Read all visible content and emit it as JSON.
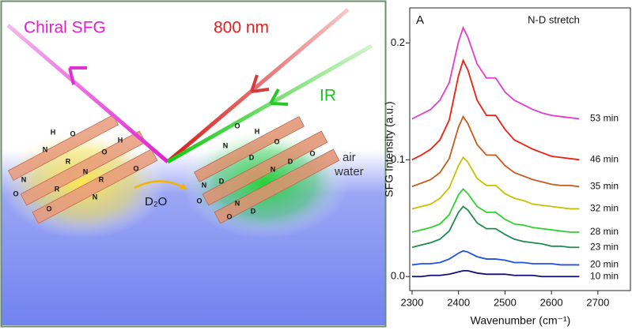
{
  "diagram": {
    "beam_sfg": "Chiral SFG",
    "beam_visible": "800 nm",
    "beam_ir": "IR",
    "air": "air",
    "water": "water",
    "exchange": "D₂O",
    "left_molecule_atoms": [
      "H",
      "O",
      "N",
      "R",
      "O",
      "H",
      "N",
      "R",
      "O",
      "N",
      "R",
      "O",
      "N",
      "O"
    ],
    "right_molecule_atoms": [
      "O",
      "H",
      "N",
      "D",
      "O",
      "N",
      "D",
      "O",
      "N",
      "D",
      "O",
      "N",
      "D",
      "O"
    ]
  },
  "chart_data": {
    "type": "line",
    "annotation": "A",
    "subtitle": "N-D stretch",
    "x_label": "Wavenumber (cm⁻¹)",
    "y_label": "SFG Intensity (a.u.)",
    "x": [
      2300,
      2320,
      2340,
      2360,
      2380,
      2400,
      2410,
      2420,
      2440,
      2460,
      2480,
      2500,
      2520,
      2540,
      2560,
      2580,
      2600,
      2620,
      2640,
      2660
    ],
    "xlim": [
      2295,
      2770
    ],
    "xticks": [
      2300,
      2400,
      2500,
      2600,
      2700
    ],
    "ylim": [
      -0.012,
      0.23
    ],
    "yticks": [
      {
        "value": 0,
        "label": "0.0"
      },
      0.1,
      0.2
    ],
    "series": [
      {
        "name": "53 min",
        "color": "#e43cc8",
        "values": [
          0.135,
          0.139,
          0.143,
          0.151,
          0.166,
          0.201,
          0.213,
          0.205,
          0.182,
          0.17,
          0.17,
          0.158,
          0.151,
          0.147,
          0.143,
          0.14,
          0.138,
          0.137,
          0.136,
          0.135
        ]
      },
      {
        "name": "46 min",
        "color": "#f01e10",
        "values": [
          0.1,
          0.104,
          0.109,
          0.117,
          0.134,
          0.172,
          0.185,
          0.177,
          0.151,
          0.138,
          0.138,
          0.126,
          0.117,
          0.113,
          0.109,
          0.106,
          0.103,
          0.102,
          0.101,
          0.1
        ]
      },
      {
        "name": "35 min",
        "color": "#c85a20",
        "values": [
          0.077,
          0.08,
          0.083,
          0.089,
          0.101,
          0.128,
          0.137,
          0.131,
          0.113,
          0.104,
          0.104,
          0.095,
          0.089,
          0.086,
          0.083,
          0.081,
          0.079,
          0.078,
          0.078,
          0.077
        ]
      },
      {
        "name": "32 min",
        "color": "#c8c000",
        "values": [
          0.058,
          0.06,
          0.062,
          0.067,
          0.076,
          0.095,
          0.102,
          0.098,
          0.084,
          0.078,
          0.078,
          0.071,
          0.067,
          0.065,
          0.062,
          0.061,
          0.06,
          0.059,
          0.058,
          0.058
        ]
      },
      {
        "name": "28 min",
        "color": "#30d030",
        "values": [
          0.038,
          0.04,
          0.042,
          0.045,
          0.053,
          0.07,
          0.075,
          0.071,
          0.06,
          0.055,
          0.055,
          0.049,
          0.045,
          0.044,
          0.042,
          0.041,
          0.04,
          0.039,
          0.038,
          0.038
        ]
      },
      {
        "name": "23 min",
        "color": "#208a50",
        "values": [
          0.025,
          0.027,
          0.029,
          0.032,
          0.039,
          0.055,
          0.06,
          0.057,
          0.046,
          0.041,
          0.041,
          0.036,
          0.032,
          0.03,
          0.029,
          0.028,
          0.026,
          0.026,
          0.025,
          0.025
        ]
      },
      {
        "name": "20 min",
        "color": "#2050e0",
        "values": [
          0.01,
          0.011,
          0.011,
          0.012,
          0.015,
          0.02,
          0.022,
          0.021,
          0.017,
          0.015,
          0.015,
          0.014,
          0.012,
          0.012,
          0.011,
          0.011,
          0.011,
          0.01,
          0.01,
          0.01
        ]
      },
      {
        "name": "10 min",
        "color": "#10107a",
        "values": [
          0,
          0,
          0.001,
          0.001,
          0.002,
          0.004,
          0.005,
          0.005,
          0.003,
          0.002,
          0.002,
          0.002,
          0.001,
          0.001,
          0.001,
          0,
          0,
          0,
          0,
          0
        ]
      }
    ]
  }
}
